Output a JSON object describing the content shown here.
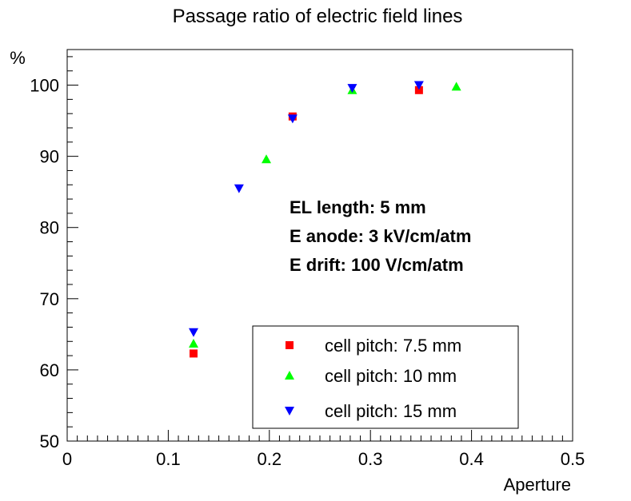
{
  "chart_data": {
    "type": "scatter",
    "title": "Passage ratio of electric field lines",
    "xlabel": "Aperture",
    "ylabel": "%",
    "xlim": [
      0,
      0.5
    ],
    "ylim": [
      50,
      105
    ],
    "x_ticks": [
      0,
      0.1,
      0.2,
      0.3,
      0.4,
      0.5
    ],
    "x_tick_labels": [
      "0",
      "0.1",
      "0.2",
      "0.3",
      "0.4",
      "0.5"
    ],
    "y_ticks": [
      50,
      60,
      70,
      80,
      90,
      100
    ],
    "y_tick_labels": [
      "50",
      "60",
      "70",
      "80",
      "90",
      "100"
    ],
    "series": [
      {
        "name": "cell pitch: 7.5 mm",
        "marker": "square",
        "color": "#ff0000",
        "points": [
          [
            0.125,
            62.3
          ],
          [
            0.223,
            95.6
          ],
          [
            0.348,
            99.3
          ]
        ]
      },
      {
        "name": "cell pitch: 10 mm",
        "marker": "triangle-up",
        "color": "#00ff00",
        "points": [
          [
            0.125,
            63.7
          ],
          [
            0.197,
            89.6
          ],
          [
            0.282,
            99.3
          ],
          [
            0.385,
            99.8
          ]
        ]
      },
      {
        "name": "cell pitch: 15 mm",
        "marker": "triangle-down",
        "color": "#0000ff",
        "points": [
          [
            0.125,
            65.3
          ],
          [
            0.17,
            85.5
          ],
          [
            0.223,
            95.3
          ],
          [
            0.282,
            99.6
          ],
          [
            0.348,
            100.0
          ]
        ]
      }
    ],
    "annotations": [
      "EL length: 5 mm",
      "E anode: 3 kV/cm/atm",
      "E drift: 100 V/cm/atm"
    ],
    "legend": {
      "placement": "bottom-right",
      "entries": [
        "cell pitch: 7.5 mm",
        "cell pitch: 10 mm",
        "cell pitch: 15 mm"
      ]
    }
  }
}
